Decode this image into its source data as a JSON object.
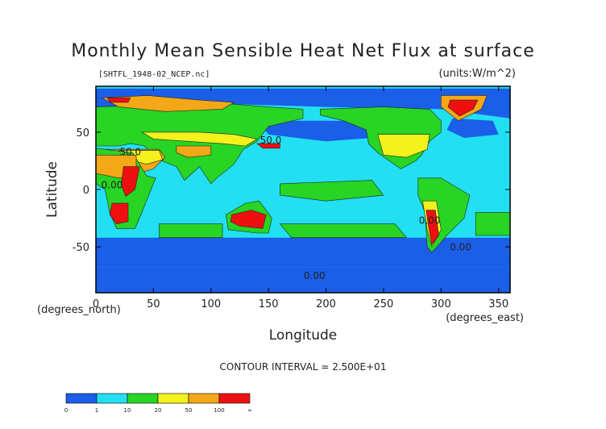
{
  "chart_data": {
    "type": "heatmap",
    "title": "Monthly Mean Sensible Heat Net Flux at surface",
    "subtitle_left": "[SHTFL_1948-02_NCEP.nc]",
    "subtitle_right": "(units:W/m^2)",
    "xlabel": "Longitude",
    "ylabel": "Latitude",
    "x_unit_label": "(degrees_east)",
    "y_unit_label": "(degrees_north)",
    "xlim": [
      0,
      360
    ],
    "ylim": [
      -90,
      90
    ],
    "x_ticks": [
      0,
      50,
      100,
      150,
      200,
      250,
      300,
      350
    ],
    "y_ticks": [
      -50,
      0,
      50
    ],
    "contour_interval_text": "CONTOUR INTERVAL = 2.500E+01",
    "contour_labels": [
      {
        "text": "50.0",
        "lon": 30,
        "lat": 30
      },
      {
        "text": "50.0",
        "lon": 152,
        "lat": 40
      },
      {
        "text": "0.00",
        "lon": 14,
        "lat": 1
      },
      {
        "text": "0.00",
        "lon": 290,
        "lat": -30
      },
      {
        "text": "0.00",
        "lon": 317,
        "lat": -53
      },
      {
        "text": "0.00",
        "lon": 190,
        "lat": -78
      }
    ],
    "colorbar": {
      "levels": [
        "0",
        "1",
        "10",
        "20",
        "50",
        "100",
        "∞"
      ],
      "colors": [
        "#1b5ee8",
        "#22e0f2",
        "#28d424",
        "#f4f21c",
        "#f4a818",
        "#ee1010"
      ]
    },
    "regions": [
      {
        "name": "ocean",
        "level": 1,
        "poly": [
          [
            0,
            90
          ],
          [
            360,
            90
          ],
          [
            360,
            -90
          ],
          [
            0,
            -90
          ]
        ]
      },
      {
        "name": "arctic-ocean",
        "level": 0,
        "poly": [
          [
            0,
            88
          ],
          [
            360,
            88
          ],
          [
            360,
            62
          ],
          [
            300,
            70
          ],
          [
            200,
            72
          ],
          [
            100,
            75
          ],
          [
            0,
            72
          ]
        ]
      },
      {
        "name": "north-pacific-blue",
        "level": 0,
        "poly": [
          [
            140,
            60
          ],
          [
            230,
            60
          ],
          [
            240,
            45
          ],
          [
            200,
            42
          ],
          [
            150,
            48
          ]
        ]
      },
      {
        "name": "north-atlantic-blue",
        "level": 0,
        "poly": [
          [
            310,
            62
          ],
          [
            345,
            60
          ],
          [
            350,
            48
          ],
          [
            320,
            45
          ],
          [
            305,
            52
          ]
        ]
      },
      {
        "name": "southern-ocean-blue",
        "level": 0,
        "poly": [
          [
            0,
            -42
          ],
          [
            360,
            -42
          ],
          [
            360,
            -68
          ],
          [
            0,
            -68
          ]
        ]
      },
      {
        "name": "antarctica",
        "level": 0,
        "poly": [
          [
            0,
            -68
          ],
          [
            360,
            -68
          ],
          [
            360,
            -90
          ],
          [
            0,
            -90
          ]
        ]
      },
      {
        "name": "north-america",
        "level": 2,
        "poly": [
          [
            195,
            70
          ],
          [
            250,
            72
          ],
          [
            290,
            70
          ],
          [
            300,
            60
          ],
          [
            300,
            50
          ],
          [
            290,
            42
          ],
          [
            283,
            30
          ],
          [
            278,
            25
          ],
          [
            265,
            18
          ],
          [
            255,
            25
          ],
          [
            245,
            32
          ],
          [
            237,
            40
          ],
          [
            235,
            52
          ],
          [
            215,
            60
          ],
          [
            195,
            65
          ]
        ]
      },
      {
        "name": "greenland",
        "level": 4,
        "poly": [
          [
            300,
            82
          ],
          [
            340,
            82
          ],
          [
            335,
            70
          ],
          [
            315,
            60
          ],
          [
            300,
            72
          ]
        ]
      },
      {
        "name": "greenland-core",
        "level": 5,
        "poly": [
          [
            308,
            78
          ],
          [
            332,
            78
          ],
          [
            328,
            70
          ],
          [
            316,
            64
          ],
          [
            306,
            72
          ]
        ]
      },
      {
        "name": "us-yellow",
        "level": 3,
        "poly": [
          [
            245,
            48
          ],
          [
            290,
            48
          ],
          [
            288,
            35
          ],
          [
            270,
            28
          ],
          [
            250,
            30
          ]
        ]
      },
      {
        "name": "eurasia",
        "level": 2,
        "poly": [
          [
            0,
            72
          ],
          [
            60,
            74
          ],
          [
            100,
            76
          ],
          [
            150,
            72
          ],
          [
            180,
            70
          ],
          [
            180,
            62
          ],
          [
            150,
            55
          ],
          [
            140,
            42
          ],
          [
            128,
            35
          ],
          [
            120,
            22
          ],
          [
            105,
            10
          ],
          [
            100,
            5
          ],
          [
            90,
            20
          ],
          [
            77,
            8
          ],
          [
            70,
            20
          ],
          [
            57,
            25
          ],
          [
            50,
            30
          ],
          [
            42,
            38
          ],
          [
            30,
            40
          ],
          [
            20,
            38
          ],
          [
            10,
            38
          ],
          [
            0,
            38
          ]
        ]
      },
      {
        "name": "siberia-orange",
        "level": 4,
        "poly": [
          [
            5,
            80
          ],
          [
            45,
            82
          ],
          [
            90,
            78
          ],
          [
            120,
            76
          ],
          [
            110,
            70
          ],
          [
            60,
            68
          ],
          [
            20,
            72
          ]
        ]
      },
      {
        "name": "siberia-red",
        "level": 5,
        "poly": [
          [
            10,
            80
          ],
          [
            30,
            80
          ],
          [
            28,
            76
          ],
          [
            12,
            76
          ]
        ]
      },
      {
        "name": "central-asia-yellow",
        "level": 3,
        "poly": [
          [
            40,
            50
          ],
          [
            90,
            50
          ],
          [
            120,
            48
          ],
          [
            140,
            44
          ],
          [
            130,
            38
          ],
          [
            110,
            40
          ],
          [
            80,
            42
          ],
          [
            50,
            44
          ]
        ]
      },
      {
        "name": "tibet-orange",
        "level": 4,
        "poly": [
          [
            70,
            38
          ],
          [
            100,
            38
          ],
          [
            100,
            30
          ],
          [
            80,
            28
          ],
          [
            70,
            32
          ]
        ]
      },
      {
        "name": "east-asia-red",
        "level": 5,
        "poly": [
          [
            140,
            40
          ],
          [
            160,
            40
          ],
          [
            160,
            36
          ],
          [
            145,
            36
          ]
        ]
      },
      {
        "name": "middle-east-orange",
        "level": 4,
        "poly": [
          [
            0,
            35
          ],
          [
            55,
            35
          ],
          [
            60,
            28
          ],
          [
            50,
            18
          ],
          [
            40,
            15
          ],
          [
            25,
            28
          ],
          [
            0,
            28
          ]
        ]
      },
      {
        "name": "arabia-yellow",
        "level": 3,
        "poly": [
          [
            20,
            34
          ],
          [
            55,
            34
          ],
          [
            58,
            26
          ],
          [
            44,
            22
          ],
          [
            30,
            26
          ]
        ]
      },
      {
        "name": "africa",
        "level": 2,
        "poly": [
          [
            0,
            36
          ],
          [
            32,
            32
          ],
          [
            44,
            12
          ],
          [
            52,
            10
          ],
          [
            40,
            -20
          ],
          [
            34,
            -34
          ],
          [
            18,
            -34
          ],
          [
            12,
            -20
          ],
          [
            8,
            0
          ],
          [
            0,
            5
          ]
        ]
      },
      {
        "name": "sahara-orange",
        "level": 4,
        "poly": [
          [
            0,
            30
          ],
          [
            35,
            30
          ],
          [
            35,
            12
          ],
          [
            20,
            10
          ],
          [
            0,
            14
          ]
        ]
      },
      {
        "name": "east-africa-red",
        "level": 5,
        "poly": [
          [
            24,
            20
          ],
          [
            38,
            20
          ],
          [
            34,
            0
          ],
          [
            26,
            -6
          ],
          [
            22,
            4
          ]
        ]
      },
      {
        "name": "kalahari-red",
        "level": 5,
        "poly": [
          [
            14,
            -12
          ],
          [
            28,
            -12
          ],
          [
            28,
            -28
          ],
          [
            18,
            -30
          ],
          [
            12,
            -22
          ]
        ]
      },
      {
        "name": "australia",
        "level": 2,
        "poly": [
          [
            113,
            -22
          ],
          [
            130,
            -12
          ],
          [
            142,
            -10
          ],
          [
            153,
            -25
          ],
          [
            150,
            -38
          ],
          [
            140,
            -38
          ],
          [
            115,
            -35
          ]
        ]
      },
      {
        "name": "australia-red",
        "level": 5,
        "poly": [
          [
            118,
            -22
          ],
          [
            135,
            -18
          ],
          [
            148,
            -22
          ],
          [
            145,
            -34
          ],
          [
            125,
            -32
          ],
          [
            117,
            -28
          ]
        ]
      },
      {
        "name": "south-america",
        "level": 2,
        "poly": [
          [
            280,
            10
          ],
          [
            300,
            10
          ],
          [
            325,
            -5
          ],
          [
            320,
            -25
          ],
          [
            305,
            -40
          ],
          [
            292,
            -55
          ],
          [
            288,
            -50
          ],
          [
            286,
            -20
          ],
          [
            280,
            -5
          ]
        ]
      },
      {
        "name": "andes-yellow",
        "level": 3,
        "poly": [
          [
            284,
            -10
          ],
          [
            296,
            -10
          ],
          [
            300,
            -35
          ],
          [
            292,
            -50
          ],
          [
            288,
            -35
          ]
        ]
      },
      {
        "name": "andes-red",
        "level": 5,
        "poly": [
          [
            287,
            -18
          ],
          [
            295,
            -18
          ],
          [
            298,
            -40
          ],
          [
            292,
            -48
          ],
          [
            289,
            -32
          ]
        ]
      },
      {
        "name": "pacific-green",
        "level": 2,
        "poly": [
          [
            160,
            5
          ],
          [
            240,
            8
          ],
          [
            250,
            -5
          ],
          [
            200,
            -10
          ],
          [
            160,
            -5
          ]
        ]
      },
      {
        "name": "south-pacific-green",
        "level": 2,
        "poly": [
          [
            160,
            -30
          ],
          [
            260,
            -30
          ],
          [
            270,
            -42
          ],
          [
            170,
            -42
          ]
        ]
      },
      {
        "name": "indian-ocean-green",
        "level": 2,
        "poly": [
          [
            55,
            -30
          ],
          [
            110,
            -30
          ],
          [
            110,
            -42
          ],
          [
            55,
            -42
          ]
        ]
      },
      {
        "name": "atlantic-green",
        "level": 2,
        "poly": [
          [
            330,
            -20
          ],
          [
            360,
            -20
          ],
          [
            360,
            -40
          ],
          [
            330,
            -40
          ]
        ]
      }
    ]
  }
}
